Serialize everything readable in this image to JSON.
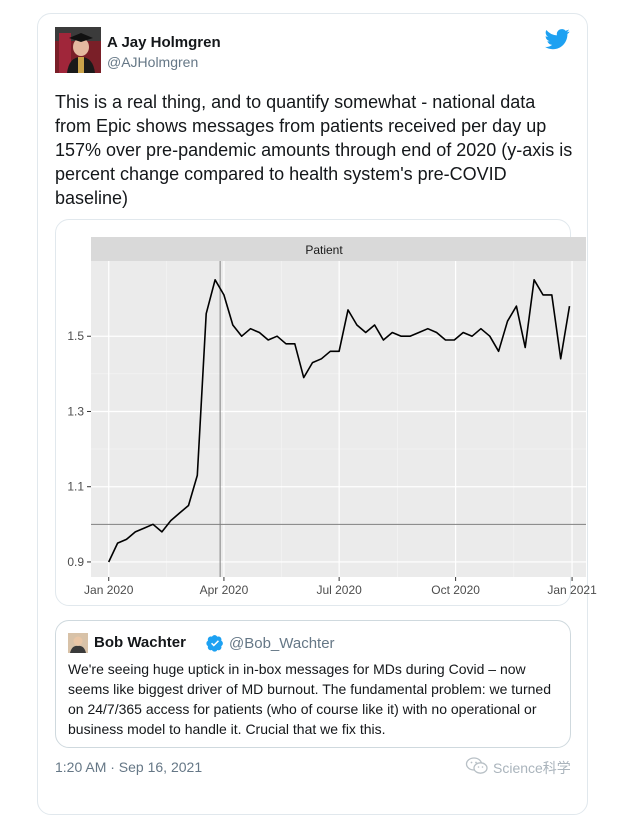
{
  "tweet": {
    "author_name": "A Jay Holmgren",
    "author_handle": "@AJHolmgren",
    "text": "This is a real thing, and to quantify somewhat - national data from Epic shows messages from patients received per day up 157% over pre-pandemic amounts through end of 2020 (y-axis is percent change compared to health system's pre-COVID baseline)",
    "timestamp": "1:20 AM · Sep 16, 2021"
  },
  "quoted_tweet": {
    "author_name": "Bob Wachter",
    "author_handle": "@Bob_Wachter",
    "text": "We're seeing huge uptick in in-box messages for MDs during Covid – now seems like biggest driver of MD burnout. The fundamental problem: we turned on 24/7/365 access for patients (who of course like it) with no operational or business model to handle it. Crucial that we fix this."
  },
  "watermark": "Science科学",
  "icons": {
    "platform": "twitter-bird-icon",
    "verified": "verified-badge-icon",
    "watermark": "wechat-icon"
  },
  "colors": {
    "twitter_blue": "#1da1f2",
    "panel_bg": "#ebebeb",
    "strip_bg": "#d9d9d9",
    "line": "#000000",
    "ref_line": "#7f7f7f"
  },
  "chart_data": {
    "type": "line",
    "facet_label": "Patient",
    "ylabel": "",
    "ylim": [
      0.86,
      1.7
    ],
    "yticks": [
      0.9,
      1.1,
      1.3,
      1.5
    ],
    "ytick_labels": [
      "0.9",
      "1.1",
      "1.3",
      "1.5"
    ],
    "xticks": [
      "2020-01-01",
      "2020-04-01",
      "2020-07-01",
      "2020-10-01",
      "2021-01-01"
    ],
    "xtick_labels": [
      "Jan 2020",
      "Apr 2020",
      "Jul 2020",
      "Oct 2020",
      "Jan 2021"
    ],
    "xlim": [
      "2019-12-18",
      "2021-01-12"
    ],
    "reference_lines": {
      "horizontal_y": 1.0,
      "vertical_x": "2020-03-29"
    },
    "grid": true,
    "series": [
      {
        "x": [
          "2020-01-01",
          "2020-01-08",
          "2020-01-15",
          "2020-01-22",
          "2020-01-29",
          "2020-02-05",
          "2020-02-12",
          "2020-02-19",
          "2020-02-26",
          "2020-03-04",
          "2020-03-11",
          "2020-03-18",
          "2020-03-25",
          "2020-04-01",
          "2020-04-08",
          "2020-04-15",
          "2020-04-22",
          "2020-04-29",
          "2020-05-06",
          "2020-05-13",
          "2020-05-20",
          "2020-05-27",
          "2020-06-03",
          "2020-06-10",
          "2020-06-17",
          "2020-06-24",
          "2020-07-01",
          "2020-07-08",
          "2020-07-15",
          "2020-07-22",
          "2020-07-29",
          "2020-08-05",
          "2020-08-12",
          "2020-08-19",
          "2020-08-26",
          "2020-09-02",
          "2020-09-09",
          "2020-09-16",
          "2020-09-23",
          "2020-09-30",
          "2020-10-07",
          "2020-10-14",
          "2020-10-21",
          "2020-10-28",
          "2020-11-04",
          "2020-11-11",
          "2020-11-18",
          "2020-11-25",
          "2020-12-02",
          "2020-12-09",
          "2020-12-16",
          "2020-12-23",
          "2020-12-30"
        ],
        "y": [
          0.9,
          0.95,
          0.96,
          0.98,
          0.99,
          1.0,
          0.98,
          1.01,
          1.03,
          1.05,
          1.13,
          1.56,
          1.65,
          1.61,
          1.53,
          1.5,
          1.52,
          1.51,
          1.49,
          1.5,
          1.48,
          1.48,
          1.39,
          1.43,
          1.44,
          1.46,
          1.46,
          1.57,
          1.53,
          1.51,
          1.53,
          1.49,
          1.51,
          1.5,
          1.5,
          1.51,
          1.52,
          1.51,
          1.49,
          1.49,
          1.51,
          1.5,
          1.52,
          1.5,
          1.46,
          1.54,
          1.58,
          1.47,
          1.65,
          1.61,
          1.61,
          1.44,
          1.58
        ]
      }
    ]
  }
}
